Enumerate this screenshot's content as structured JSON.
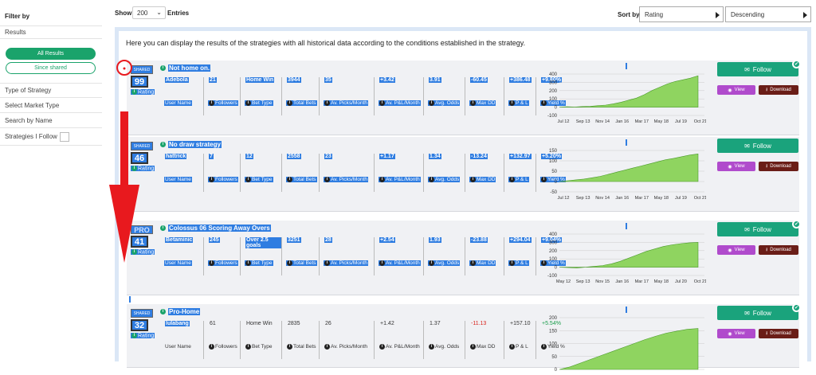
{
  "sidebar": {
    "title": "Filter by",
    "results_label": "Results",
    "all_results": "All Results",
    "since_shared": "Since shared",
    "items": [
      "Type of Strategy",
      "Select Market Type",
      "Search by Name",
      "Strategies I Follow"
    ]
  },
  "topbar": {
    "show_label": "Show",
    "show_value": "200",
    "entries_label": "Entries",
    "sort_label": "Sort by",
    "sort_value": "Rating",
    "order_value": "Descending"
  },
  "intro": "Here you can display the results of the strategies with all historical data according to the conditions established in the strategy.",
  "column_labels": [
    "User Name",
    "Followers",
    "Bet Type",
    "Total Bets",
    "Av. Picks/Month",
    "Av. P&L/Month",
    "Avg. Odds",
    "Max DD",
    "P & L",
    "Yield %"
  ],
  "rating_label": "Rating",
  "follow_label": "Follow",
  "view_label": "View",
  "download_label": "Download",
  "strategies": [
    {
      "badge": "SHARED",
      "rating": "99",
      "name": "Not home on.",
      "values": [
        "Adebola",
        "21",
        "Home Win",
        "3944",
        "35",
        "+3.42",
        "3.91",
        "-60.45",
        "+386.48",
        "+9.80%"
      ],
      "chart": {
        "y_ticks": [
          "400",
          "300",
          "200",
          "100",
          "0",
          "-100"
        ],
        "x_ticks": [
          "Jul 12",
          "Sep 13",
          "Nov 14",
          "Jan 16",
          "Mar 17",
          "May 18",
          "Jul 19",
          "Oct 21"
        ]
      }
    },
    {
      "badge": "SHARED",
      "rating": "46",
      "name": "No draw strategy",
      "values": [
        "hattrick",
        "7",
        "12",
        "2558",
        "23",
        "+1.17",
        "1.34",
        "-13.24",
        "+132.97",
        "+5.20%"
      ],
      "chart": {
        "y_ticks": [
          "150",
          "100",
          "50",
          "0",
          "-50"
        ],
        "x_ticks": [
          "Jul 12",
          "Sep 13",
          "Nov 14",
          "Jan 16",
          "Mar 17",
          "May 18",
          "Jul 19",
          "Oct 21"
        ]
      }
    },
    {
      "badge": "PRO",
      "rating": "41",
      "name": "Colossus 06 Scoring Away Overs",
      "values": [
        "Betaminic",
        "245",
        "Over 2.5 goals",
        "3251",
        "28",
        "+2.54",
        "1.93",
        "-23.88",
        "+294.04",
        "+9.04%"
      ],
      "chart": {
        "y_ticks": [
          "400",
          "300",
          "200",
          "100",
          "0",
          "-100"
        ],
        "x_ticks": [
          "May 12",
          "Sep 13",
          "Nov 15",
          "Jan 16",
          "Mar 17",
          "May 18",
          "Jul 20",
          "Oct 21"
        ]
      }
    },
    {
      "badge": "SHARED",
      "rating": "32",
      "name": "Pro-Home",
      "values": [
        "lulabang",
        "61",
        "Home Win",
        "2835",
        "26",
        "+1.42",
        "1.37",
        "-11.13",
        "+157.10",
        "+5.54%"
      ],
      "chart": {
        "y_ticks": [
          "200",
          "150",
          "100",
          "50",
          "0"
        ],
        "x_ticks": []
      }
    }
  ],
  "colors": {
    "accent": "#1aa37c",
    "selection": "#2f7de1",
    "view": "#b04bcc",
    "download": "#6a1d17",
    "annotation": "#e8191e"
  }
}
